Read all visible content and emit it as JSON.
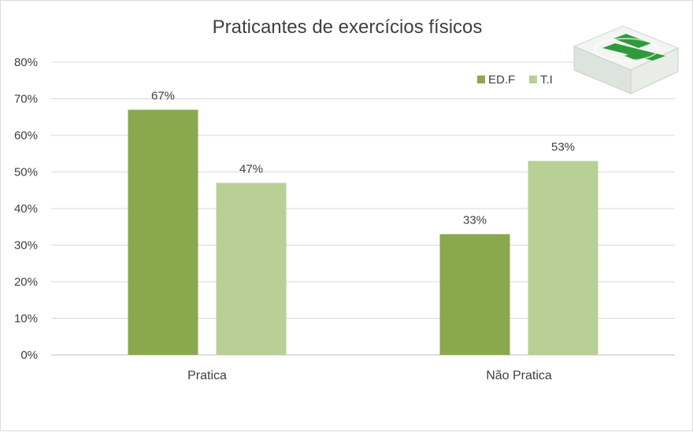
{
  "chart_data": {
    "type": "bar",
    "title": "Praticantes de exercícios físicos",
    "categories": [
      "Pratica",
      "Não Pratica"
    ],
    "series": [
      {
        "name": "ED.F",
        "values": [
          67,
          33
        ],
        "labels": [
          "67%",
          "33%"
        ],
        "color": "#8aa84e"
      },
      {
        "name": "T.I",
        "values": [
          47,
          53
        ],
        "labels": [
          "47%",
          "53%"
        ],
        "color": "#b8cf95"
      }
    ],
    "ylim": [
      0,
      80
    ],
    "yticks": [
      0,
      10,
      20,
      30,
      40,
      50,
      60,
      70,
      80
    ],
    "ytick_labels": [
      "0%",
      "10%",
      "20%",
      "30%",
      "40%",
      "50%",
      "60%",
      "70%",
      "80%"
    ],
    "xlabel": "",
    "ylabel": "",
    "grid": true,
    "legend_position": "top-right",
    "colors": {
      "gridline": "#d9d9d9",
      "axis": "#bfbfbf",
      "text": "#404040"
    }
  },
  "decoration": {
    "icon": "first-aid-kit-icon"
  }
}
